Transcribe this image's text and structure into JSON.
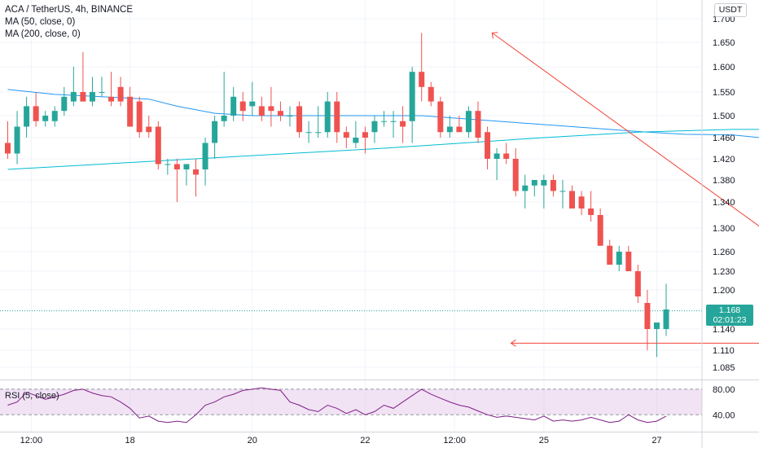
{
  "legend": {
    "symbol": "ACA / TetherUS, 4h, BINANCE",
    "ma50": "MA (50, close, 0)",
    "ma200": "MA (200, close, 0)"
  },
  "rsi_label": "RSI (5, close)",
  "currency": "USDT",
  "last_price": {
    "value": "1.168",
    "countdown": "02:01:23"
  },
  "colors": {
    "up": "#26a69a",
    "down": "#ef5350",
    "ma50": "#2196f3",
    "ma200": "#00bcd4",
    "trendline": "#f44336",
    "rsi": "#7e1f86",
    "rsi_band": "#e1bee7",
    "last_price_line": "#26a69a"
  },
  "chart_data": {
    "type": "candlestick",
    "price_axis_ticks": [
      1.7,
      1.65,
      1.6,
      1.55,
      1.5,
      1.46,
      1.42,
      1.38,
      1.34,
      1.3,
      1.26,
      1.23,
      1.2,
      1.14,
      1.11,
      1.085
    ],
    "price_axis_labels": [
      "1.700",
      "1.650",
      "1.600",
      "1.550",
      "1.500",
      "1.460",
      "1.420",
      "1.380",
      "1.340",
      "1.300",
      "1.260",
      "1.230",
      "1.200",
      "1.140",
      "1.110",
      "1.085"
    ],
    "time_axis_labels": [
      "12:00",
      "18",
      "20",
      "22",
      "12:00",
      "25",
      "27"
    ],
    "time_axis_label_bars": [
      2.5,
      13,
      26,
      38,
      47.5,
      57,
      69
    ],
    "candles": [
      [
        1.45,
        1.49,
        1.42,
        1.43
      ],
      [
        1.43,
        1.51,
        1.41,
        1.48
      ],
      [
        1.48,
        1.54,
        1.46,
        1.52
      ],
      [
        1.52,
        1.55,
        1.48,
        1.49
      ],
      [
        1.49,
        1.51,
        1.48,
        1.5
      ],
      [
        1.49,
        1.52,
        1.48,
        1.51
      ],
      [
        1.51,
        1.56,
        1.5,
        1.54
      ],
      [
        1.53,
        1.6,
        1.52,
        1.55
      ],
      [
        1.55,
        1.63,
        1.53,
        1.53
      ],
      [
        1.53,
        1.58,
        1.52,
        1.55
      ],
      [
        1.55,
        1.58,
        1.54,
        1.55
      ],
      [
        1.54,
        1.59,
        1.52,
        1.53
      ],
      [
        1.56,
        1.58,
        1.52,
        1.53
      ],
      [
        1.54,
        1.56,
        1.48,
        1.48
      ],
      [
        1.53,
        1.54,
        1.46,
        1.47
      ],
      [
        1.48,
        1.5,
        1.46,
        1.47
      ],
      [
        1.48,
        1.49,
        1.4,
        1.41
      ],
      [
        1.41,
        1.42,
        1.39,
        1.41
      ],
      [
        1.41,
        1.42,
        1.34,
        1.4
      ],
      [
        1.4,
        1.41,
        1.37,
        1.41
      ],
      [
        1.4,
        1.42,
        1.35,
        1.39
      ],
      [
        1.4,
        1.46,
        1.37,
        1.45
      ],
      [
        1.45,
        1.5,
        1.42,
        1.49
      ],
      [
        1.49,
        1.59,
        1.48,
        1.5
      ],
      [
        1.5,
        1.56,
        1.49,
        1.54
      ],
      [
        1.53,
        1.55,
        1.49,
        1.51
      ],
      [
        1.52,
        1.57,
        1.5,
        1.53
      ],
      [
        1.52,
        1.54,
        1.49,
        1.5
      ],
      [
        1.52,
        1.56,
        1.48,
        1.51
      ],
      [
        1.51,
        1.53,
        1.49,
        1.5
      ],
      [
        1.5,
        1.52,
        1.48,
        1.5
      ],
      [
        1.52,
        1.53,
        1.46,
        1.47
      ],
      [
        1.47,
        1.49,
        1.45,
        1.47
      ],
      [
        1.47,
        1.52,
        1.46,
        1.47
      ],
      [
        1.47,
        1.55,
        1.46,
        1.53
      ],
      [
        1.53,
        1.55,
        1.45,
        1.47
      ],
      [
        1.47,
        1.48,
        1.44,
        1.46
      ],
      [
        1.45,
        1.49,
        1.44,
        1.46
      ],
      [
        1.47,
        1.48,
        1.43,
        1.46
      ],
      [
        1.47,
        1.5,
        1.45,
        1.49
      ],
      [
        1.49,
        1.51,
        1.48,
        1.49
      ],
      [
        1.49,
        1.51,
        1.46,
        1.49
      ],
      [
        1.49,
        1.52,
        1.45,
        1.48
      ],
      [
        1.49,
        1.6,
        1.45,
        1.59
      ],
      [
        1.59,
        1.67,
        1.53,
        1.56
      ],
      [
        1.56,
        1.57,
        1.52,
        1.53
      ],
      [
        1.53,
        1.54,
        1.46,
        1.47
      ],
      [
        1.47,
        1.5,
        1.46,
        1.48
      ],
      [
        1.48,
        1.5,
        1.47,
        1.47
      ],
      [
        1.47,
        1.52,
        1.46,
        1.51
      ],
      [
        1.51,
        1.53,
        1.45,
        1.46
      ],
      [
        1.47,
        1.48,
        1.4,
        1.42
      ],
      [
        1.42,
        1.44,
        1.38,
        1.43
      ],
      [
        1.43,
        1.45,
        1.41,
        1.42
      ],
      [
        1.42,
        1.44,
        1.35,
        1.36
      ],
      [
        1.36,
        1.39,
        1.33,
        1.37
      ],
      [
        1.37,
        1.38,
        1.35,
        1.38
      ],
      [
        1.37,
        1.39,
        1.33,
        1.38
      ],
      [
        1.38,
        1.39,
        1.35,
        1.36
      ],
      [
        1.36,
        1.38,
        1.33,
        1.36
      ],
      [
        1.36,
        1.37,
        1.33,
        1.33
      ],
      [
        1.35,
        1.36,
        1.32,
        1.33
      ],
      [
        1.33,
        1.36,
        1.31,
        1.32
      ],
      [
        1.32,
        1.33,
        1.27,
        1.27
      ],
      [
        1.27,
        1.28,
        1.24,
        1.24
      ],
      [
        1.24,
        1.27,
        1.23,
        1.26
      ],
      [
        1.26,
        1.27,
        1.23,
        1.23
      ],
      [
        1.23,
        1.24,
        1.18,
        1.19
      ],
      [
        1.18,
        1.2,
        1.11,
        1.14
      ],
      [
        1.14,
        1.15,
        1.1,
        1.15
      ],
      [
        1.14,
        1.21,
        1.13,
        1.17
      ]
    ],
    "candle_fields": [
      "open",
      "high",
      "low",
      "close"
    ],
    "ma50": [
      [
        0,
        1.555
      ],
      [
        5,
        1.545
      ],
      [
        10,
        1.54
      ],
      [
        15,
        1.535
      ],
      [
        18,
        1.52
      ],
      [
        22,
        1.505
      ],
      [
        26,
        1.5
      ],
      [
        32,
        1.5
      ],
      [
        38,
        1.5
      ],
      [
        44,
        1.5
      ],
      [
        48,
        1.495
      ],
      [
        52,
        1.49
      ],
      [
        56,
        1.485
      ],
      [
        60,
        1.48
      ],
      [
        64,
        1.475
      ],
      [
        68,
        1.47
      ],
      [
        72,
        1.466
      ],
      [
        77,
        1.465
      ],
      [
        80,
        1.46
      ],
      [
        84,
        1.445
      ],
      [
        88,
        1.43
      ],
      [
        90,
        1.42
      ]
    ],
    "ma200": [
      [
        0,
        1.4
      ],
      [
        20,
        1.42
      ],
      [
        40,
        1.44
      ],
      [
        57,
        1.46
      ],
      [
        67,
        1.47
      ],
      [
        77,
        1.475
      ],
      [
        90,
        1.475
      ]
    ],
    "trendline": {
      "from": [
        51.5,
        1.67
      ],
      "to": [
        95,
        1.14
      ]
    },
    "support_line": {
      "from": [
        95,
        1.12
      ],
      "to": [
        53.5,
        1.12
      ]
    },
    "rsi_values": [
      55,
      60,
      75,
      70,
      64,
      68,
      72,
      78,
      80,
      74,
      70,
      68,
      60,
      50,
      35,
      38,
      30,
      28,
      30,
      28,
      40,
      55,
      60,
      68,
      72,
      78,
      80,
      82,
      80,
      78,
      60,
      55,
      48,
      45,
      55,
      50,
      42,
      48,
      40,
      45,
      55,
      50,
      60,
      70,
      80,
      72,
      66,
      60,
      55,
      52,
      46,
      40,
      36,
      38,
      36,
      34,
      32,
      38,
      30,
      32,
      30,
      32,
      36,
      32,
      28,
      30,
      40,
      32,
      28,
      30,
      38
    ],
    "rsi_axis_labels": [
      "80.00",
      "40.00"
    ],
    "rsi_band": [
      80,
      40
    ]
  }
}
